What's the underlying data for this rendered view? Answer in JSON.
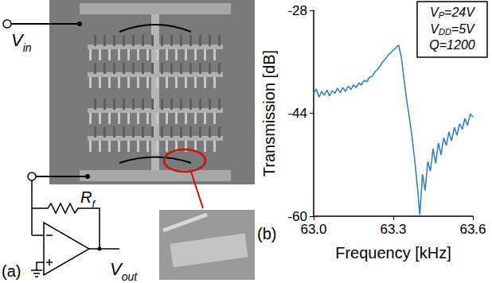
{
  "diagram": {
    "panel": "(a)",
    "input": {
      "symbol": "V",
      "subscript": "in"
    },
    "output": {
      "symbol": "V",
      "subscript": "out"
    },
    "feedback": {
      "symbol": "R",
      "subscript": "f"
    }
  },
  "chart_data": {
    "type": "line",
    "panel": "(b)",
    "x_label": "Frequency [kHz]",
    "y_label": "Transmission [dB]",
    "annotations": [
      {
        "symbol": "V",
        "subscript": "P",
        "text": "=24V"
      },
      {
        "symbol": "V",
        "subscript": "DD",
        "text": "=5V"
      },
      {
        "symbol": "",
        "subscript": "",
        "text": "Q=1200"
      }
    ],
    "x": [
      63.0,
      63.01,
      63.02,
      63.03,
      63.04,
      63.05,
      63.06,
      63.07,
      63.08,
      63.09,
      63.1,
      63.11,
      63.12,
      63.13,
      63.14,
      63.15,
      63.16,
      63.17,
      63.18,
      63.19,
      63.2,
      63.21,
      63.22,
      63.23,
      63.24,
      63.25,
      63.26,
      63.27,
      63.28,
      63.29,
      63.3,
      63.31,
      63.32,
      63.33,
      63.34,
      63.35,
      63.36,
      63.37,
      63.38,
      63.39,
      63.4,
      63.41,
      63.42,
      63.43,
      63.44,
      63.45,
      63.46,
      63.47,
      63.48,
      63.49,
      63.5,
      63.51,
      63.52,
      63.53,
      63.54,
      63.55,
      63.56,
      63.57,
      63.58,
      63.59,
      63.6
    ],
    "values": [
      -41.0,
      -40.2,
      -41.5,
      -40.6,
      -41.2,
      -40.4,
      -41.3,
      -40.5,
      -40.9,
      -40.1,
      -40.8,
      -40.0,
      -40.6,
      -39.8,
      -40.3,
      -39.6,
      -40.0,
      -39.3,
      -39.6,
      -38.9,
      -39.1,
      -38.4,
      -38.3,
      -37.6,
      -37.2,
      -36.7,
      -36.0,
      -35.6,
      -35.0,
      -34.6,
      -34.2,
      -33.8,
      -33.4,
      -35.2,
      -38.5,
      -41.8,
      -44.5,
      -47.5,
      -51.0,
      -55.0,
      -59.8,
      -53.5,
      -56.0,
      -51.5,
      -53.0,
      -49.5,
      -51.8,
      -48.6,
      -50.5,
      -47.8,
      -49.0,
      -46.9,
      -48.3,
      -46.2,
      -47.4,
      -45.6,
      -46.5,
      -44.8,
      -45.9,
      -44.1,
      -44.6
    ],
    "color": "#2a7bd0",
    "marker": "none",
    "line_style": "solid",
    "xlim": [
      63.0,
      63.6
    ],
    "xticks": [
      {
        "value": 63.0,
        "label": "63.0"
      },
      63.3,
      63.6
    ],
    "ylim": [
      -60,
      -28
    ],
    "yticks": [
      -60,
      -44,
      -28
    ],
    "grid": false
  }
}
